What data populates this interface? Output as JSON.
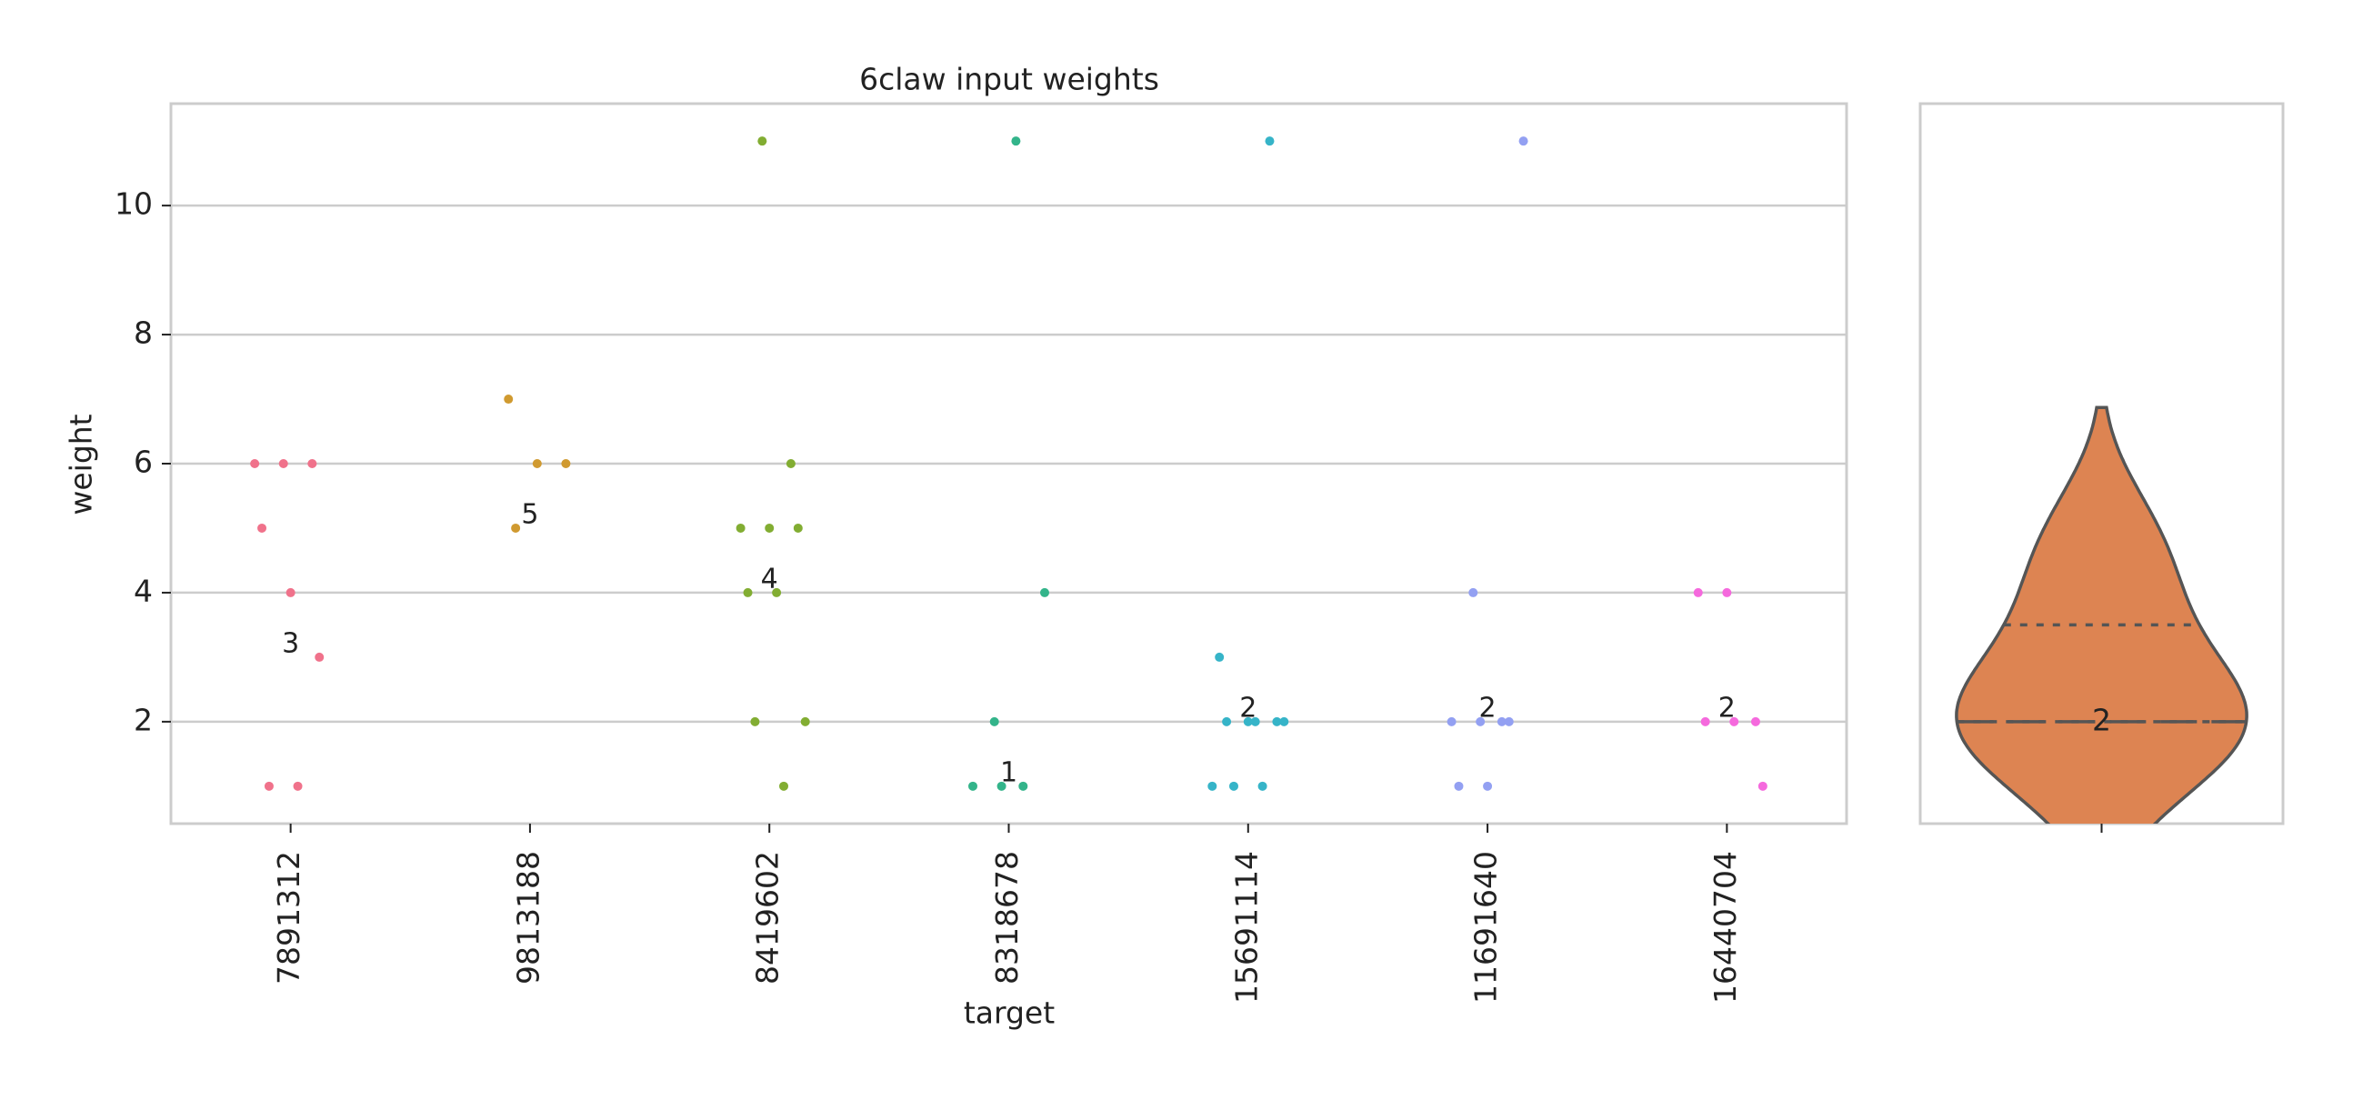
{
  "chart_data": {
    "type": "strip",
    "title": "6claw input weights",
    "x_label": "target",
    "y_label": "weight",
    "categories": [
      "7891312",
      "9813188",
      "8419602",
      "8318678",
      "15691114",
      "11691640",
      "16440704"
    ],
    "colors": [
      "#f0728b",
      "#d09a30",
      "#82ad32",
      "#33b48a",
      "#36b4c8",
      "#93a0f2",
      "#f569dd"
    ],
    "values": [
      [
        6,
        6,
        6,
        5,
        4,
        3,
        1,
        1
      ],
      [
        7,
        6,
        6,
        5
      ],
      [
        11,
        6,
        5,
        5,
        5,
        4,
        4,
        2,
        2,
        1
      ],
      [
        11,
        4,
        2,
        1,
        1,
        1
      ],
      [
        11,
        3,
        2,
        2,
        2,
        2,
        2,
        1,
        1,
        1
      ],
      [
        11,
        4,
        2,
        2,
        2,
        2,
        1,
        1
      ],
      [
        4,
        4,
        2,
        2,
        2,
        1
      ]
    ],
    "annotations": [
      3,
      5,
      4,
      1,
      2,
      2,
      2
    ],
    "violin_color": "#dd8452",
    "violin_label": 2,
    "ylim": [
      0.42,
      11.58
    ],
    "yticks": [
      2,
      4,
      6,
      8,
      10
    ],
    "grid": true
  }
}
